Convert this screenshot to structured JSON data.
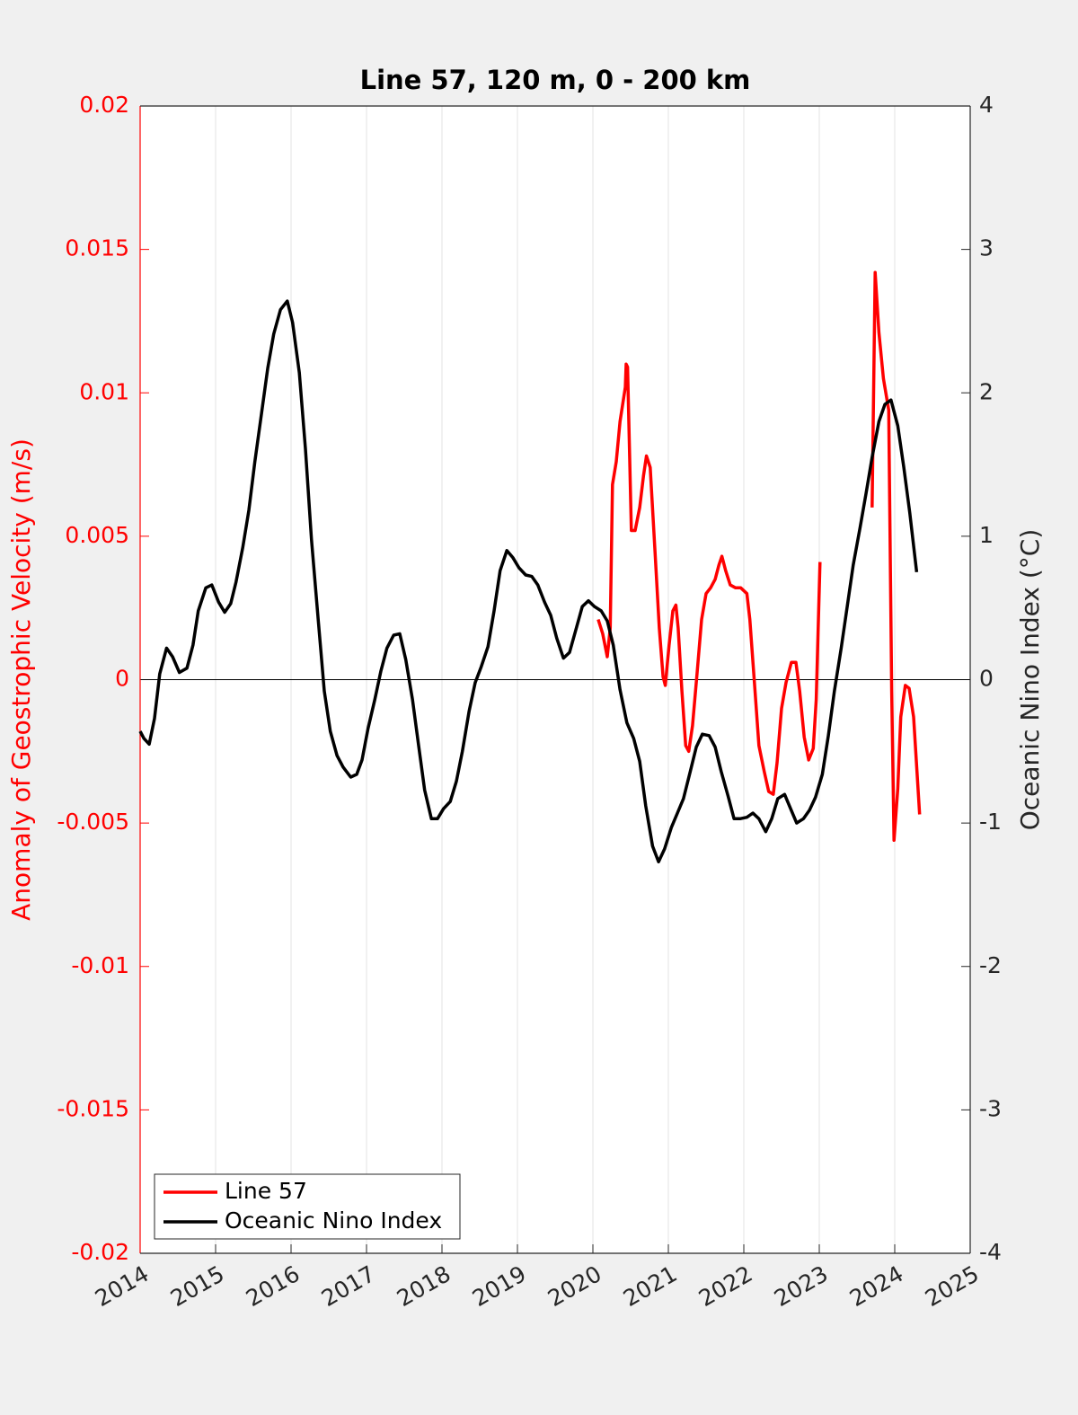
{
  "chart_data": {
    "type": "line",
    "title": "Line 57, 120 m, 0 - 200 km",
    "ylabel": "Anomaly of Geostrophic Velocity (m/s)",
    "y2label": "Oceanic Nino Index (°C)",
    "xlim": [
      2014,
      2025
    ],
    "xticks": [
      2014,
      2015,
      2016,
      2017,
      2018,
      2019,
      2020,
      2021,
      2022,
      2023,
      2024,
      2025
    ],
    "ylim": [
      -0.02,
      0.02
    ],
    "yticks": [
      -0.02,
      -0.015,
      -0.01,
      -0.005,
      0,
      0.005,
      0.01,
      0.015,
      0.02
    ],
    "y2lim": [
      -4,
      4
    ],
    "y2ticks": [
      -4,
      -3,
      -2,
      -1,
      0,
      1,
      2,
      3,
      4
    ],
    "y_axis_color": "#ff0000",
    "xgrid": true,
    "zero_line": true,
    "legend": "lower left",
    "series": [
      {
        "name": "Line 57",
        "color": "#ff0000",
        "x": [
          2020.07,
          2020.13,
          2020.19,
          2020.23,
          2020.26,
          2020.31,
          2020.36,
          2020.43,
          2020.44,
          2020.46,
          2020.51,
          2020.56,
          2020.62,
          2020.67,
          2020.71,
          2020.76,
          2020.82,
          2020.88,
          2020.93,
          2020.96,
          2021.01,
          2021.06,
          2021.1,
          2021.13,
          2021.18,
          2021.23,
          2021.27,
          2021.32,
          2021.38,
          2021.44,
          2021.5,
          2021.56,
          2021.62,
          2021.67,
          2021.71,
          2021.76,
          2021.82,
          2021.89,
          2021.96,
          2022.04,
          2022.08,
          2022.14,
          2022.2,
          2022.27,
          2022.33,
          2022.39,
          2022.44,
          2022.5,
          2022.56,
          2022.63,
          2022.69,
          2022.74,
          2022.8,
          2022.86,
          2022.92,
          2022.96,
          2023.01,
          null,
          2023.7,
          2023.74,
          2023.79,
          2023.85,
          2023.92,
          2023.96,
          2023.99,
          2024.04,
          2024.08,
          2024.14,
          2024.19,
          2024.25,
          2024.33
        ],
        "values": [
          0.0021,
          0.0016,
          0.0008,
          0.0018,
          0.0068,
          0.0076,
          0.009,
          0.0102,
          0.011,
          0.0109,
          0.0052,
          0.0052,
          0.006,
          0.0071,
          0.0078,
          0.0074,
          0.0046,
          0.0018,
          0.0001,
          -0.0002,
          0.0012,
          0.0024,
          0.0026,
          0.0018,
          -0.0004,
          -0.0023,
          -0.0025,
          -0.0016,
          0.0002,
          0.0021,
          0.003,
          0.0032,
          0.0035,
          0.004,
          0.0043,
          0.0038,
          0.0033,
          0.0032,
          0.0032,
          0.003,
          0.0021,
          -0.0001,
          -0.0023,
          -0.0032,
          -0.0039,
          -0.004,
          -0.0029,
          -0.001,
          -0.0001,
          0.0006,
          0.0006,
          -0.0004,
          -0.002,
          -0.0028,
          -0.0024,
          -0.0007,
          0.0041,
          null,
          0.006,
          0.0142,
          0.0121,
          0.0105,
          0.0094,
          -0.0004,
          -0.0056,
          -0.0038,
          -0.0013,
          -0.0002,
          -0.0003,
          -0.0013,
          -0.0047
        ]
      },
      {
        "name": "Oceanic Nino Index",
        "color": "#000000",
        "axis": "y2",
        "x": [
          2014.0,
          2014.05,
          2014.12,
          2014.19,
          2014.26,
          2014.35,
          2014.43,
          2014.52,
          2014.62,
          2014.7,
          2014.77,
          2014.87,
          2014.95,
          2015.04,
          2015.12,
          2015.2,
          2015.27,
          2015.36,
          2015.44,
          2015.52,
          2015.61,
          2015.69,
          2015.77,
          2015.86,
          2015.95,
          2016.02,
          2016.11,
          2016.19,
          2016.27,
          2016.36,
          2016.44,
          2016.52,
          2016.61,
          2016.69,
          2016.79,
          2016.87,
          2016.94,
          2017.02,
          2017.11,
          2017.19,
          2017.27,
          2017.36,
          2017.44,
          2017.52,
          2017.61,
          2017.69,
          2017.77,
          2017.86,
          2017.94,
          2018.02,
          2018.11,
          2018.19,
          2018.27,
          2018.36,
          2018.44,
          2018.52,
          2018.61,
          2018.69,
          2018.77,
          2018.86,
          2018.94,
          2019.02,
          2019.11,
          2019.19,
          2019.27,
          2019.36,
          2019.44,
          2019.52,
          2019.61,
          2019.69,
          2019.77,
          2019.86,
          2019.94,
          2020.02,
          2020.11,
          2020.19,
          2020.27,
          2020.36,
          2020.45,
          2020.54,
          2020.62,
          2020.7,
          2020.79,
          2020.87,
          2020.95,
          2021.04,
          2021.12,
          2021.2,
          2021.29,
          2021.37,
          2021.45,
          2021.54,
          2021.62,
          2021.7,
          2021.79,
          2021.87,
          2021.95,
          2022.04,
          2022.12,
          2022.2,
          2022.29,
          2022.37,
          2022.45,
          2022.54,
          2022.62,
          2022.7,
          2022.79,
          2022.87,
          2022.95,
          2023.04,
          2023.12,
          2023.2,
          2023.29,
          2023.37,
          2023.45,
          2023.54,
          2023.62,
          2023.7,
          2023.79,
          2023.87,
          2023.95,
          2024.04,
          2024.12,
          2024.2,
          2024.29
        ],
        "values": [
          -0.36,
          -0.41,
          -0.45,
          -0.27,
          0.04,
          0.22,
          0.16,
          0.05,
          0.08,
          0.24,
          0.48,
          0.64,
          0.66,
          0.54,
          0.47,
          0.53,
          0.68,
          0.92,
          1.18,
          1.52,
          1.86,
          2.17,
          2.41,
          2.58,
          2.64,
          2.49,
          2.14,
          1.61,
          0.98,
          0.42,
          -0.08,
          -0.36,
          -0.53,
          -0.61,
          -0.68,
          -0.66,
          -0.56,
          -0.34,
          -0.14,
          0.06,
          0.22,
          0.31,
          0.32,
          0.14,
          -0.14,
          -0.46,
          -0.77,
          -0.97,
          -0.97,
          -0.9,
          -0.85,
          -0.71,
          -0.5,
          -0.22,
          -0.02,
          0.09,
          0.23,
          0.48,
          0.76,
          0.9,
          0.85,
          0.78,
          0.73,
          0.72,
          0.66,
          0.54,
          0.45,
          0.29,
          0.15,
          0.19,
          0.34,
          0.51,
          0.55,
          0.51,
          0.48,
          0.41,
          0.24,
          -0.07,
          -0.3,
          -0.41,
          -0.57,
          -0.88,
          -1.16,
          -1.27,
          -1.18,
          -1.03,
          -0.93,
          -0.83,
          -0.64,
          -0.47,
          -0.38,
          -0.39,
          -0.47,
          -0.64,
          -0.81,
          -0.97,
          -0.97,
          -0.96,
          -0.93,
          -0.97,
          -1.06,
          -0.97,
          -0.83,
          -0.8,
          -0.9,
          -1.0,
          -0.97,
          -0.91,
          -0.82,
          -0.66,
          -0.39,
          -0.08,
          0.22,
          0.51,
          0.8,
          1.06,
          1.3,
          1.55,
          1.8,
          1.92,
          1.95,
          1.77,
          1.48,
          1.16,
          0.75
        ]
      }
    ]
  }
}
